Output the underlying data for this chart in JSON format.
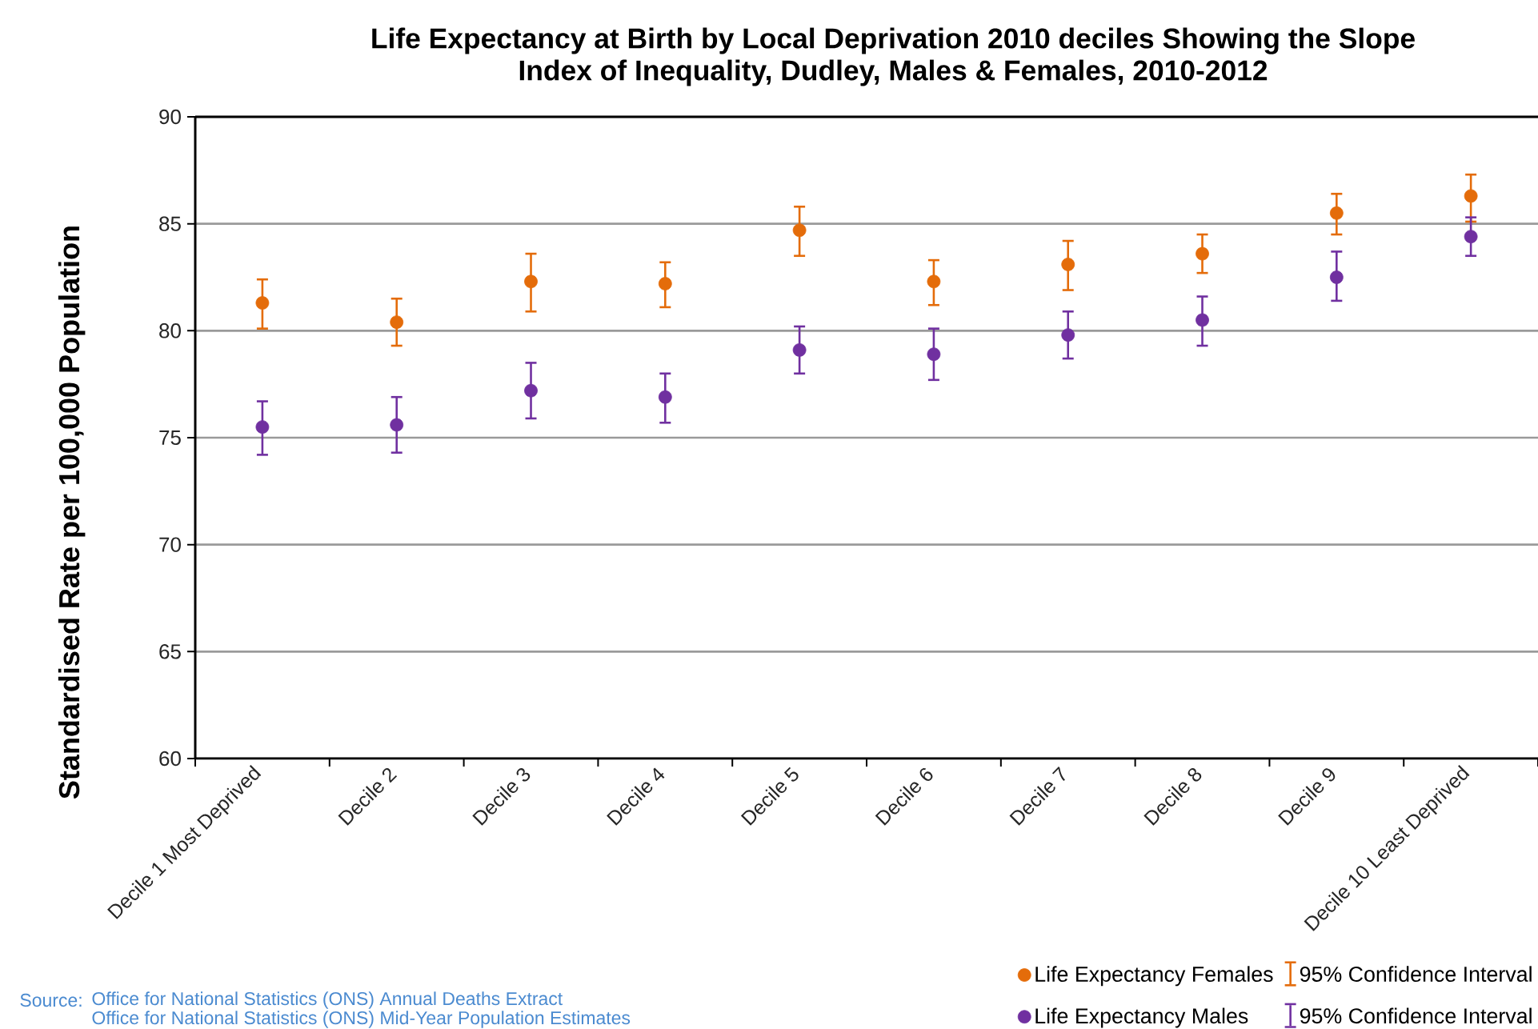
{
  "chart_data": {
    "type": "scatter",
    "title": "Life Expectancy at Birth by Local Deprivation 2010 deciles Showing the Slope Index of Inequality, Dudley, Males & Females, 2010-2012",
    "ylabel": "Standardised Rate per 100,000 Population",
    "categories": [
      "Decile 1 Most Deprived",
      "Decile 2",
      "Decile 3",
      "Decile 4",
      "Decile 5",
      "Decile 6",
      "Decile 7",
      "Decile 8",
      "Decile 9",
      "Decile 10 Least Deprived"
    ],
    "series": [
      {
        "name": "Life Expectancy Females",
        "color": "#e46c0a",
        "values": [
          81.3,
          80.4,
          82.3,
          82.2,
          84.7,
          82.3,
          83.1,
          83.6,
          85.5,
          86.3
        ],
        "errors": [
          [
            80.1,
            82.4
          ],
          [
            79.3,
            81.5
          ],
          [
            80.9,
            83.6
          ],
          [
            81.1,
            83.2
          ],
          [
            83.5,
            85.8
          ],
          [
            81.2,
            83.3
          ],
          [
            81.9,
            84.2
          ],
          [
            82.7,
            84.5
          ],
          [
            84.5,
            86.4
          ],
          [
            85.1,
            87.3
          ]
        ]
      },
      {
        "name": "Life Expectancy Males",
        "color": "#7030a0",
        "values": [
          75.5,
          75.6,
          77.2,
          76.9,
          79.1,
          78.9,
          79.8,
          80.5,
          82.5,
          84.4
        ],
        "errors": [
          [
            74.2,
            76.7
          ],
          [
            74.3,
            76.9
          ],
          [
            75.9,
            78.5
          ],
          [
            75.7,
            78.0
          ],
          [
            78.0,
            80.2
          ],
          [
            77.7,
            80.1
          ],
          [
            78.7,
            80.9
          ],
          [
            79.3,
            81.6
          ],
          [
            81.4,
            83.7
          ],
          [
            83.5,
            85.3
          ]
        ]
      }
    ],
    "ylim": [
      60,
      90
    ],
    "yticks": [
      60,
      65,
      70,
      75,
      80,
      85,
      90
    ],
    "grid": "y",
    "legend": "bottom right",
    "marker": "circle",
    "annotations": [
      "Source:",
      "Office for National Statistics (ONS) Annual Deaths Extract",
      "Office for National Statistics (ONS) Mid-Year Population Estimates",
      "95% Confidence Interval",
      "95% Confidence Interval"
    ]
  }
}
